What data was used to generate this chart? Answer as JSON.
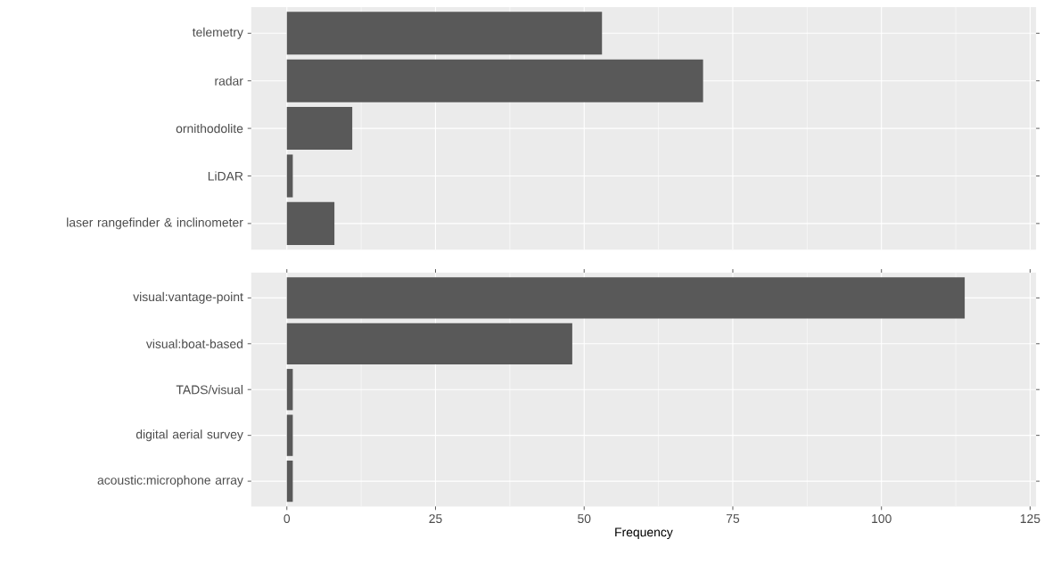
{
  "chart_data": [
    {
      "type": "bar",
      "orientation": "horizontal",
      "categories": [
        "telemetry",
        "radar",
        "ornithodolite",
        "LiDAR",
        "laser rangefinder & inclinometer"
      ],
      "values": [
        53,
        70,
        11,
        1,
        8
      ],
      "color": "#595959",
      "xlim": [
        -6,
        126
      ],
      "xticks": [
        0,
        25,
        50,
        75,
        100,
        125
      ],
      "grid": true,
      "tick_labels": "y"
    },
    {
      "type": "bar",
      "orientation": "horizontal",
      "categories": [
        "visual:vantage-point",
        "visual:boat-based",
        "TADS/visual",
        "digital aerial survey",
        "acoustic:microphone array"
      ],
      "values": [
        114,
        48,
        1,
        1,
        1
      ],
      "color": "#595959",
      "xlim": [
        -6,
        126
      ],
      "xticks": [
        0,
        25,
        50,
        75,
        100,
        125
      ],
      "xlabel": "Frequency",
      "grid": true
    }
  ]
}
